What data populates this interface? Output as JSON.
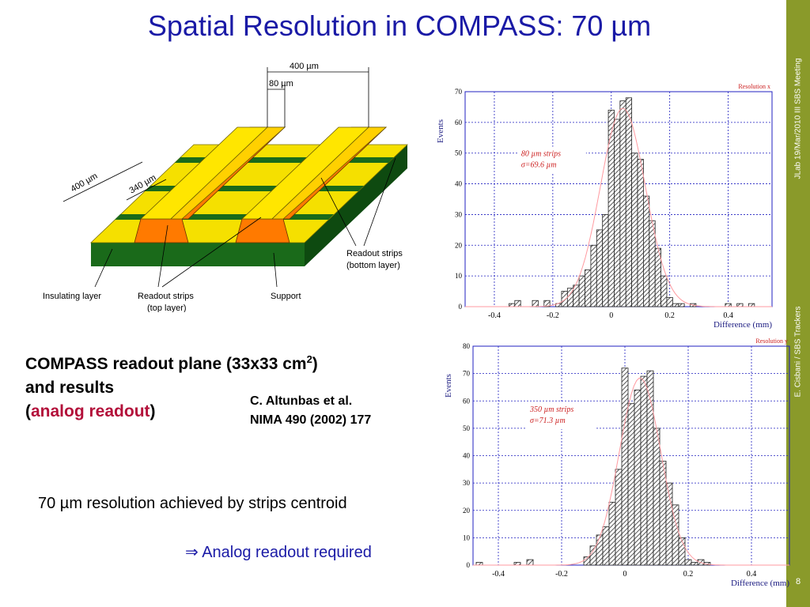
{
  "slide": {
    "title": "Spatial Resolution in COMPASS: 70 µm",
    "sidebar_top": "JLab 19/Mar/2010 III SBS Meeting",
    "sidebar_bottom": "E. Cisbani / SBS Trackers",
    "page_number": "8",
    "caption_line1": "COMPASS readout plane (33x33 cm",
    "caption_sup": "2",
    "caption_line1_end": ")",
    "caption_line2": "and results",
    "caption_open": "(",
    "caption_highlight": "analog readout",
    "caption_close": ")",
    "reference_line1": "C. Altunbas et al.",
    "reference_line2": "NIMA 490 (2002) 177",
    "bullet1": "70 µm resolution achieved by strips centroid",
    "bullet2": "⇒ Analog readout required"
  },
  "diagram": {
    "dim_400_top": "400 µm",
    "dim_80": "80 µm",
    "dim_400_side": "400 µm",
    "dim_340": "340 µm",
    "label_readout_bottom_1": "Readout strips",
    "label_readout_bottom_2": "(bottom layer)",
    "label_insulating": "Insulating layer",
    "label_readout_top_1": "Readout strips",
    "label_readout_top_2": "(top layer)",
    "label_support": "Support",
    "colors": {
      "strip": "#ffe600",
      "strip_side": "#ff7a00",
      "support": "#1a6a1a",
      "support_dark": "#0e4a10",
      "top_yellow": "#f5e000"
    }
  },
  "chart_data": [
    {
      "type": "bar",
      "title": "Resolution x",
      "xlabel": "Difference (mm)",
      "ylabel": "Events",
      "xlim": [
        -0.5,
        0.55
      ],
      "ylim": [
        0,
        70
      ],
      "xticks": [
        -0.4,
        -0.2,
        0,
        0.2,
        0.4
      ],
      "yticks": [
        0,
        10,
        20,
        30,
        40,
        50,
        60,
        70
      ],
      "bin_width": 0.02,
      "x": [
        -0.34,
        -0.32,
        -0.26,
        -0.22,
        -0.18,
        -0.16,
        -0.14,
        -0.12,
        -0.1,
        -0.08,
        -0.06,
        -0.04,
        -0.02,
        0.0,
        0.02,
        0.04,
        0.06,
        0.08,
        0.1,
        0.12,
        0.14,
        0.16,
        0.18,
        0.2,
        0.22,
        0.24,
        0.28,
        0.4,
        0.44,
        0.48
      ],
      "values": [
        1,
        2,
        2,
        2,
        1,
        5,
        6,
        7,
        10,
        12,
        20,
        25,
        30,
        64,
        61,
        67,
        68,
        50,
        48,
        36,
        28,
        19,
        10,
        3,
        1,
        1,
        1,
        1,
        1,
        1
      ],
      "annotation_line1": "80 µm strips",
      "annotation_line2": "σ=69.6 µm",
      "bar_color": "#c8c8c8",
      "fit_color": "#ff9aa0",
      "axis_color": "#2020c0"
    },
    {
      "type": "bar",
      "title": "Resolution y",
      "xlabel": "Difference (mm)",
      "ylabel": "Events",
      "xlim": [
        -0.48,
        0.52
      ],
      "ylim": [
        0,
        80
      ],
      "xticks": [
        -0.4,
        -0.2,
        0,
        0.2,
        0.4
      ],
      "yticks": [
        0,
        10,
        20,
        30,
        40,
        50,
        60,
        70,
        80
      ],
      "bin_width": 0.02,
      "x": [
        -0.46,
        -0.34,
        -0.3,
        -0.12,
        -0.1,
        -0.08,
        -0.06,
        -0.04,
        -0.02,
        0.0,
        0.02,
        0.04,
        0.06,
        0.08,
        0.1,
        0.12,
        0.14,
        0.16,
        0.18,
        0.2,
        0.22,
        0.24,
        0.26
      ],
      "values": [
        1,
        1,
        2,
        3,
        7,
        11,
        14,
        23,
        35,
        72,
        59,
        64,
        69,
        71,
        50,
        38,
        30,
        22,
        10,
        2,
        1,
        2,
        1
      ],
      "annotation_line1": "350 µm strips",
      "annotation_line2": "σ=71.3 µm",
      "bar_color": "#c8c8c8",
      "fit_color": "#ff9aa0",
      "axis_color": "#2020c0"
    }
  ]
}
